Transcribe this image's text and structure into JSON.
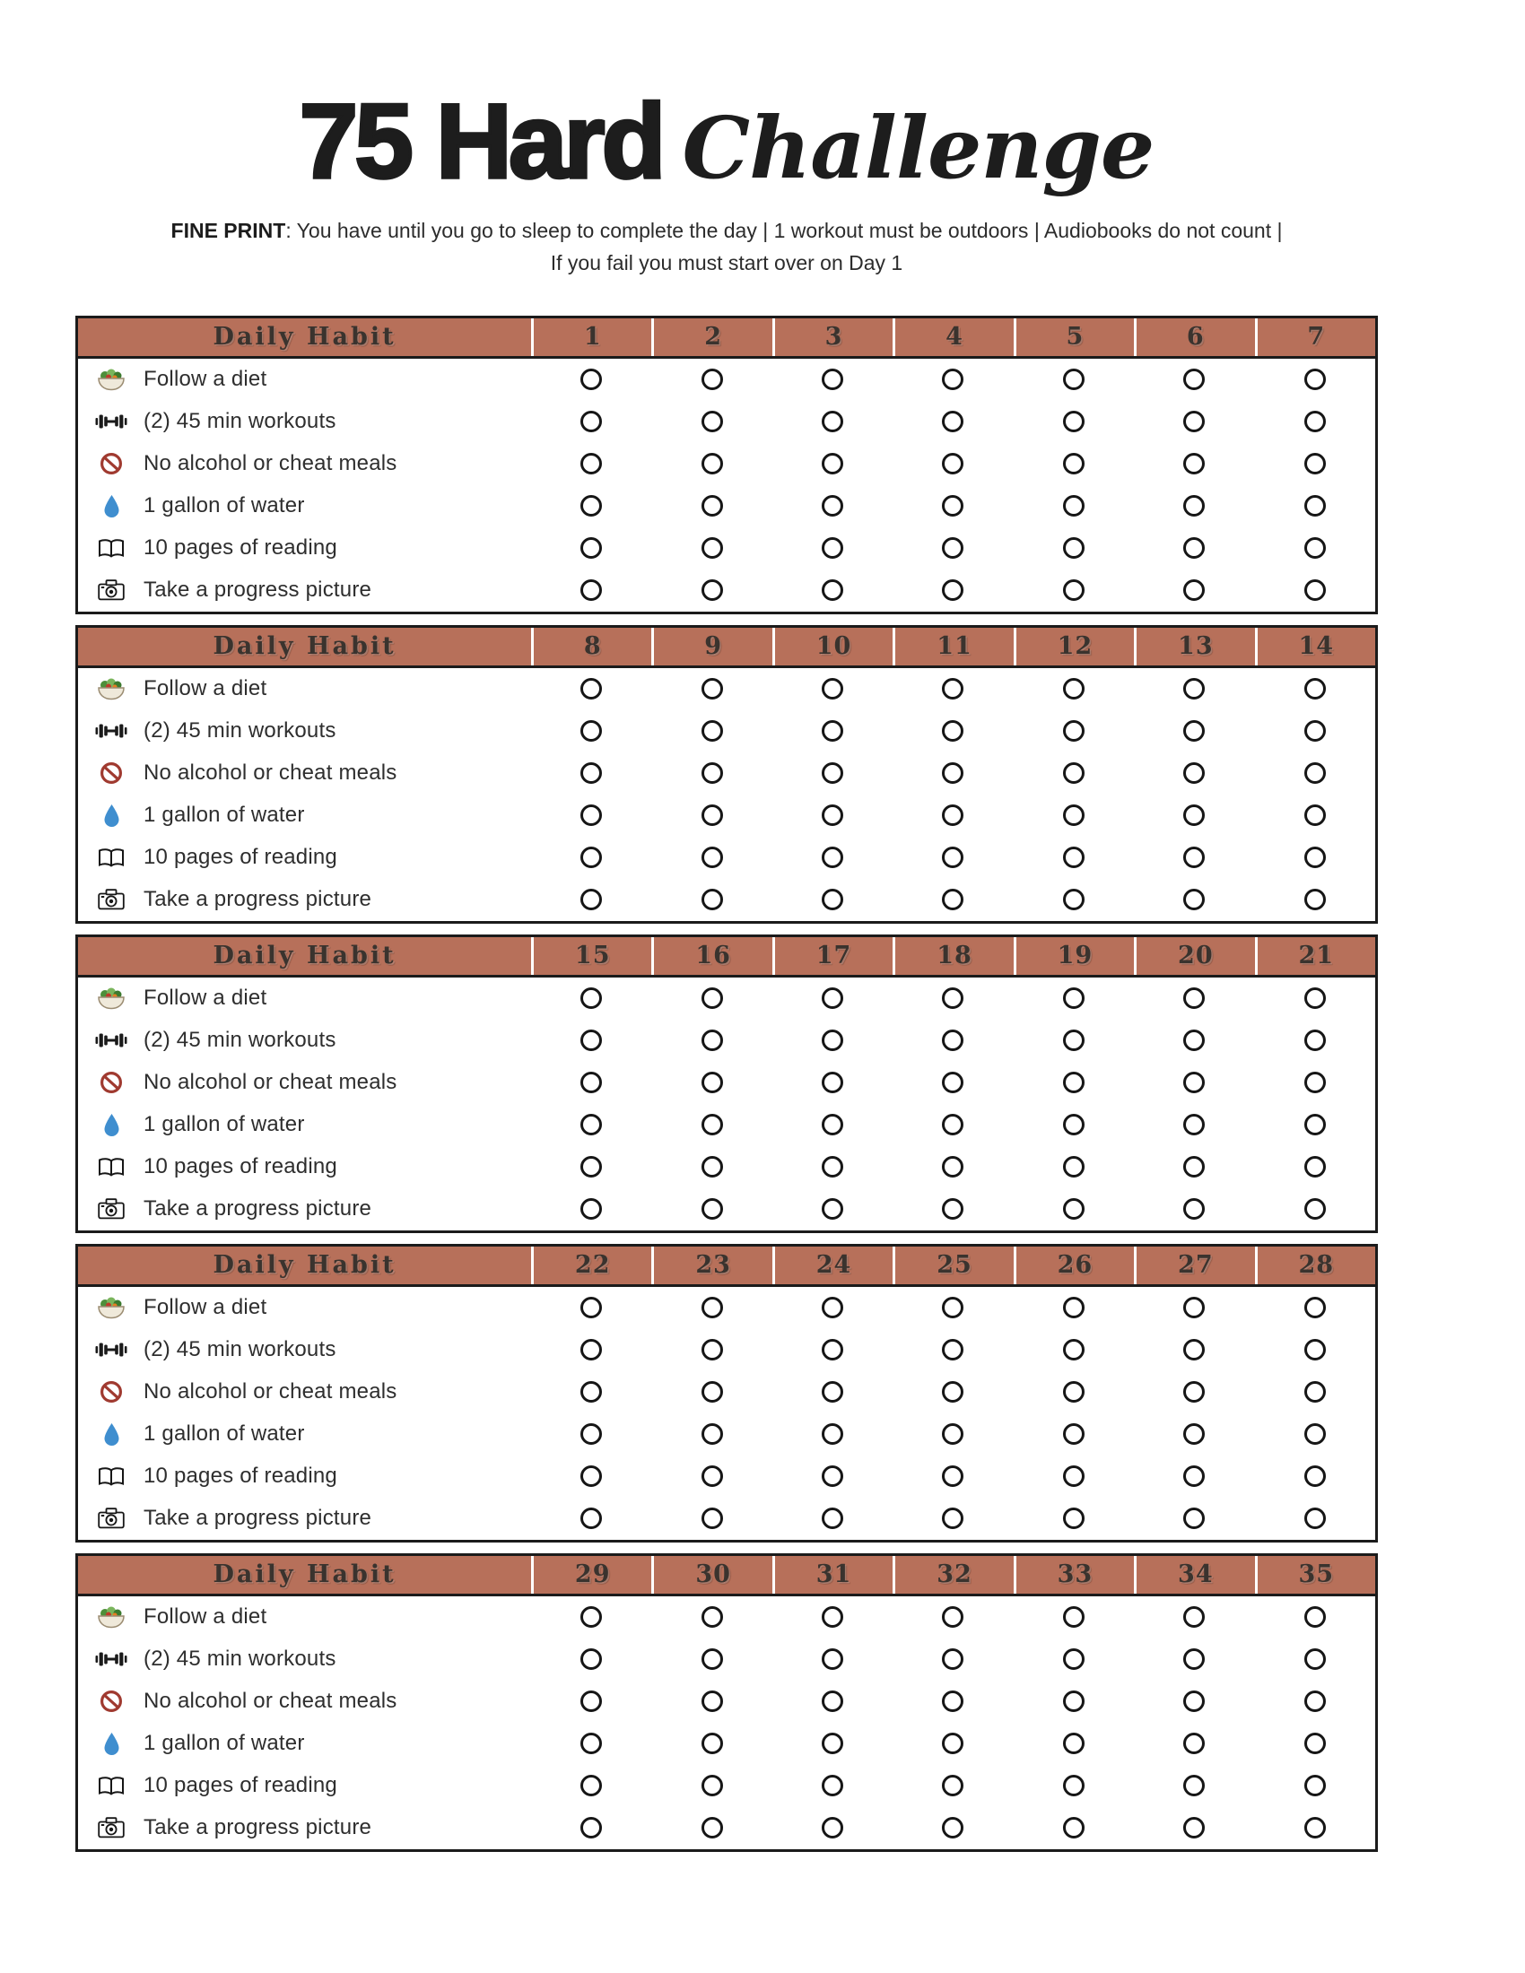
{
  "title": {
    "main": "75 Hard",
    "script": "Challenge"
  },
  "fine_print": {
    "label": "FINE PRINT",
    "line1": ": You have until you go to sleep to complete the day | 1 workout must be outdoors | Audiobooks do not count |",
    "line2": "If you fail you must start over on Day 1"
  },
  "colors": {
    "header_bg": "#b7705a",
    "header_text": "#3a332e",
    "circle_border": "#161616",
    "prohibition_red": "#a03a30",
    "water_blue": "#3f8ecf"
  },
  "table": {
    "habit_header": "Daily Habit",
    "habits": [
      {
        "icon": "salad-icon",
        "label": "Follow a diet"
      },
      {
        "icon": "dumbbell-icon",
        "label": "(2) 45 min workouts"
      },
      {
        "icon": "no-alcohol-icon",
        "label": "No alcohol or cheat meals"
      },
      {
        "icon": "water-drop-icon",
        "label": "1 gallon of water"
      },
      {
        "icon": "book-icon",
        "label": "10 pages of reading"
      },
      {
        "icon": "camera-icon",
        "label": "Take a progress picture"
      }
    ],
    "weeks": [
      {
        "days": [
          1,
          2,
          3,
          4,
          5,
          6,
          7
        ]
      },
      {
        "days": [
          8,
          9,
          10,
          11,
          12,
          13,
          14
        ]
      },
      {
        "days": [
          15,
          16,
          17,
          18,
          19,
          20,
          21
        ]
      },
      {
        "days": [
          22,
          23,
          24,
          25,
          26,
          27,
          28
        ]
      },
      {
        "days": [
          29,
          30,
          31,
          32,
          33,
          34,
          35
        ]
      }
    ]
  }
}
